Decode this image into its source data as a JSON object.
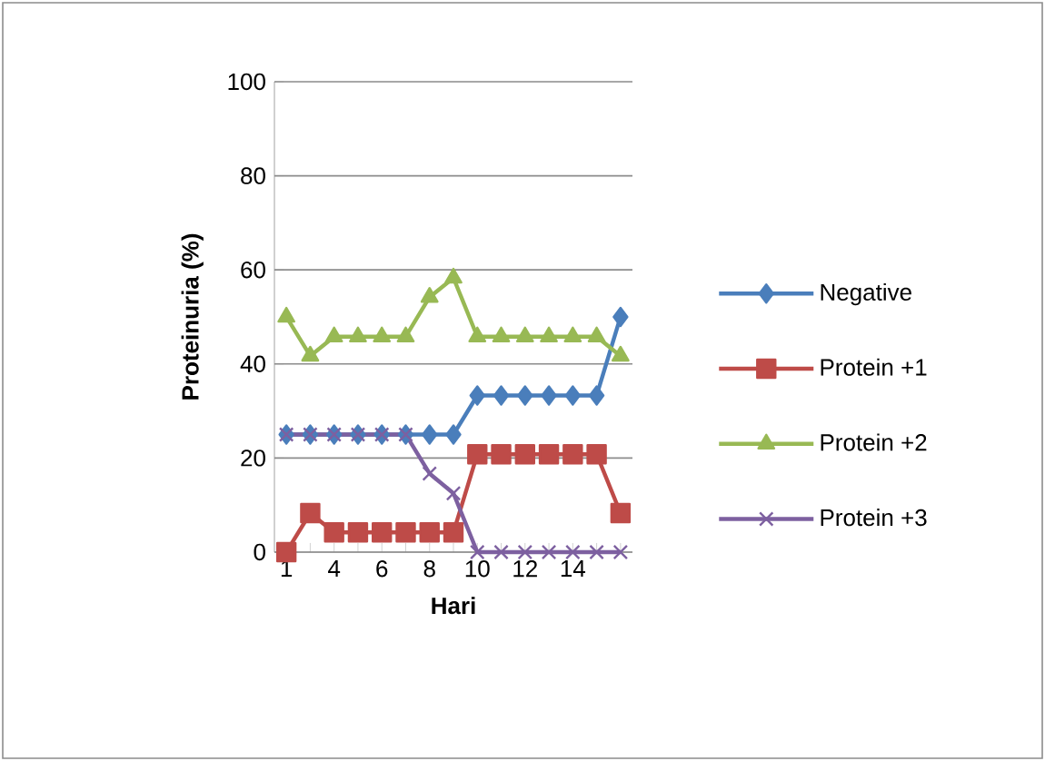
{
  "chart_data": {
    "type": "line",
    "xlabel": "Hari",
    "ylabel": "Proteinuria (%)",
    "categories": [
      "1",
      null,
      "4",
      null,
      "6",
      null,
      "8",
      null,
      "10",
      null,
      "12",
      null,
      "14",
      null,
      null
    ],
    "series": [
      {
        "name": "Negative",
        "color": "#4a7ebb",
        "marker": "diamond",
        "values": [
          25,
          25,
          25,
          25,
          25,
          25,
          25,
          25,
          33.3,
          33.3,
          33.3,
          33.3,
          33.3,
          33.3,
          50
        ]
      },
      {
        "name": "Protein +1",
        "color": "#be4b48",
        "marker": "square",
        "values": [
          0,
          8.3,
          4.2,
          4.2,
          4.2,
          4.2,
          4.2,
          4.2,
          20.8,
          20.8,
          20.8,
          20.8,
          20.8,
          20.8,
          8.3
        ]
      },
      {
        "name": "Protein +2",
        "color": "#98b954",
        "marker": "triangle",
        "values": [
          50,
          41.7,
          45.8,
          45.8,
          45.8,
          45.8,
          54.2,
          58.3,
          45.8,
          45.8,
          45.8,
          45.8,
          45.8,
          45.8,
          41.7
        ]
      },
      {
        "name": "Protein +3",
        "color": "#7d60a0",
        "marker": "cross",
        "values": [
          25,
          25,
          25,
          25,
          25,
          25,
          16.7,
          12.5,
          0,
          0,
          0,
          0,
          0,
          0,
          0
        ]
      }
    ],
    "ylim": [
      0,
      100
    ],
    "yticks": [
      0,
      20,
      40,
      60,
      80,
      100
    ],
    "grid": "y",
    "legend": "right",
    "line_style": "solid"
  }
}
